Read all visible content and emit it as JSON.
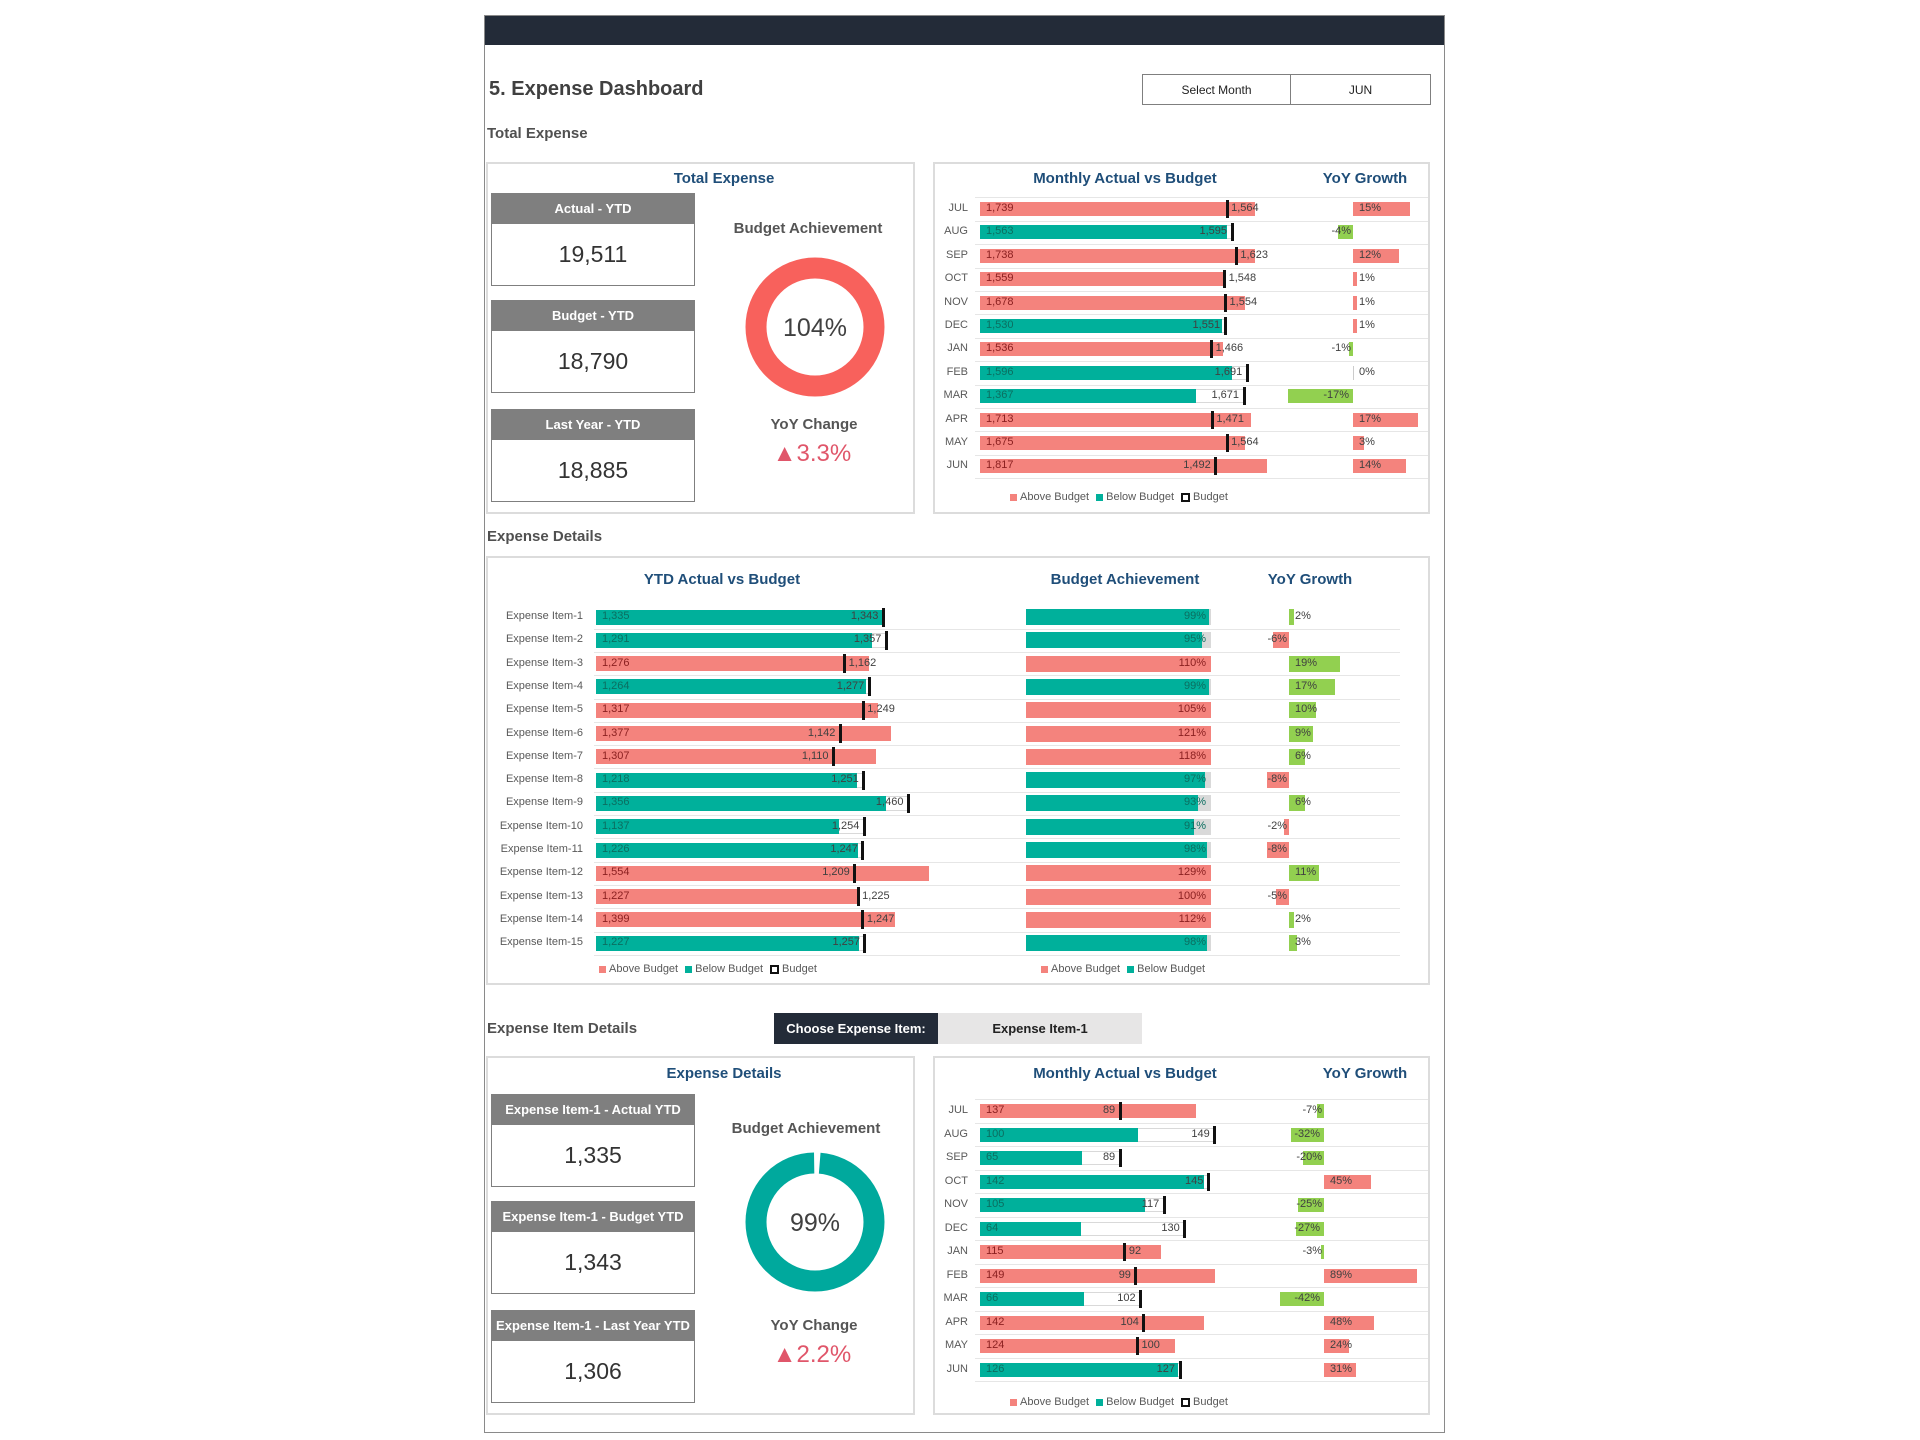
{
  "title": "5. Expense Dashboard",
  "month_selector": {
    "label": "Select Month",
    "value": "JUN"
  },
  "colors": {
    "above_budget": "#f4837d",
    "below_budget": "#00b09b",
    "yoy_negative": "#92d050",
    "header": "#232b38",
    "title_blue": "#1f4e79",
    "kpi_header": "#7f7f7f",
    "donut_above": "#f8615c",
    "donut_below": "#00a99d"
  },
  "total_expense": {
    "section_label": "Total Expense",
    "panel_title": "Total Expense",
    "kpis": [
      {
        "label": "Actual - YTD",
        "value": "19,511"
      },
      {
        "label": "Budget - YTD",
        "value": "18,790"
      },
      {
        "label": "Last Year - YTD",
        "value": "18,885"
      }
    ],
    "budget_achievement_label": "Budget Achievement",
    "budget_achievement": "104%",
    "budget_achievement_pct": 104,
    "yoy_label": "YoY Change",
    "yoy_value": "3.3%",
    "yoy_icon": "triangle-up-icon"
  },
  "monthly_chart": {
    "title": "Monthly Actual vs Budget",
    "yoy_title": "YoY Growth",
    "months": [
      "JUL",
      "AUG",
      "SEP",
      "OCT",
      "NOV",
      "DEC",
      "JAN",
      "FEB",
      "MAR",
      "APR",
      "MAY",
      "JUN"
    ],
    "actual": [
      1739,
      1563,
      1738,
      1559,
      1678,
      1530,
      1536,
      1596,
      1367,
      1713,
      1675,
      1817
    ],
    "budget": [
      1564,
      1595,
      1623,
      1548,
      1554,
      1551,
      1466,
      1691,
      1671,
      1471,
      1564,
      1492
    ],
    "yoy": [
      15,
      -4,
      12,
      1,
      1,
      1,
      -1,
      0,
      -17,
      17,
      3,
      14
    ],
    "legend": [
      "Above Budget",
      "Below Budget",
      "Budget"
    ]
  },
  "expense_details": {
    "section_label": "Expense Details",
    "ytd_title": "YTD Actual vs Budget",
    "achievement_title": "Budget Achievement",
    "yoy_title": "YoY Growth",
    "items": [
      "Expense Item-1",
      "Expense Item-2",
      "Expense Item-3",
      "Expense Item-4",
      "Expense Item-5",
      "Expense Item-6",
      "Expense Item-7",
      "Expense Item-8",
      "Expense Item-9",
      "Expense Item-10",
      "Expense Item-11",
      "Expense Item-12",
      "Expense Item-13",
      "Expense Item-14",
      "Expense Item-15"
    ],
    "actual": [
      1335,
      1291,
      1276,
      1264,
      1317,
      1377,
      1307,
      1218,
      1356,
      1137,
      1226,
      1554,
      1227,
      1399,
      1227
    ],
    "budget": [
      1343,
      1357,
      1162,
      1277,
      1249,
      1142,
      1110,
      1251,
      1460,
      1254,
      1247,
      1209,
      1225,
      1247,
      1257
    ],
    "achievement": [
      99,
      95,
      110,
      99,
      105,
      121,
      118,
      97,
      93,
      91,
      98,
      129,
      100,
      112,
      98
    ],
    "yoy": [
      2,
      -6,
      19,
      17,
      10,
      9,
      6,
      -8,
      6,
      -2,
      -8,
      11,
      -5,
      2,
      3
    ],
    "legend_left": [
      "Above Budget",
      "Below Budget",
      "Budget"
    ],
    "legend_right": [
      "Above Budget",
      "Below Budget"
    ]
  },
  "item_details": {
    "section_label": "Expense Item Details",
    "choose_label": "Choose Expense Item:",
    "choose_value": "Expense Item-1",
    "panel_title": "Expense Details",
    "kpis": [
      {
        "label": "Expense Item-1 - Actual YTD",
        "value": "1,335"
      },
      {
        "label": "Expense Item-1 - Budget YTD",
        "value": "1,343"
      },
      {
        "label": "Expense Item-1 - Last Year YTD",
        "value": "1,306"
      }
    ],
    "budget_achievement_label": "Budget Achievement",
    "budget_achievement": "99%",
    "budget_achievement_pct": 99,
    "yoy_label": "YoY Change",
    "yoy_value": "2.2%",
    "yoy_icon": "triangle-up-icon"
  },
  "item_monthly_chart": {
    "title": "Monthly Actual vs Budget",
    "yoy_title": "YoY Growth",
    "months": [
      "JUL",
      "AUG",
      "SEP",
      "OCT",
      "NOV",
      "DEC",
      "JAN",
      "FEB",
      "MAR",
      "APR",
      "MAY",
      "JUN"
    ],
    "actual": [
      137,
      100,
      65,
      142,
      105,
      64,
      115,
      149,
      66,
      142,
      124,
      126
    ],
    "budget": [
      89,
      149,
      89,
      145,
      117,
      130,
      92,
      99,
      102,
      104,
      100,
      127
    ],
    "yoy": [
      -7,
      -32,
      -20,
      45,
      -25,
      -27,
      -3,
      89,
      -42,
      48,
      24,
      31
    ],
    "legend": [
      "Above Budget",
      "Below Budget",
      "Budget"
    ]
  }
}
